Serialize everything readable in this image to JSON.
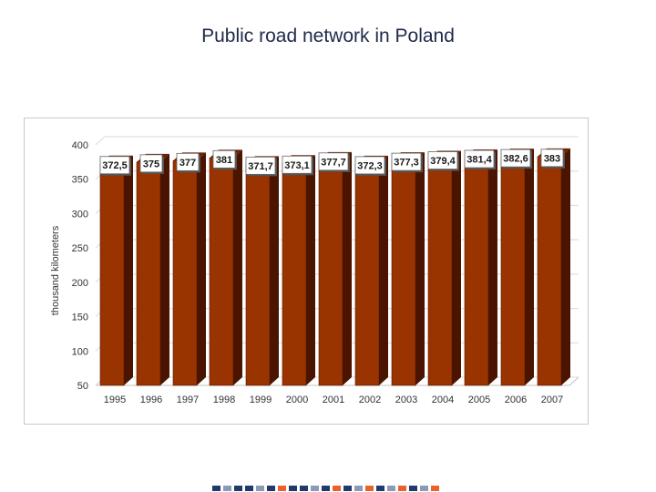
{
  "slide": {
    "title": "Public road network in Poland"
  },
  "chart_data": {
    "type": "bar",
    "title": "",
    "xlabel": "",
    "ylabel": "thousand kilometers",
    "categories": [
      "1995",
      "1996",
      "1997",
      "1998",
      "1999",
      "2000",
      "2001",
      "2002",
      "2003",
      "2004",
      "2005",
      "2006",
      "2007"
    ],
    "values": [
      372.5,
      375,
      377,
      381,
      371.7,
      373.1,
      377.7,
      372.3,
      377.3,
      379.4,
      381.4,
      382.6,
      383
    ],
    "value_labels": [
      "372,5",
      "375",
      "377",
      "381",
      "371,7",
      "373,1",
      "377,7",
      "372,3",
      "377,3",
      "379,4",
      "381,4",
      "382,6",
      "383"
    ],
    "ylim": [
      50,
      400
    ],
    "yticks": [
      50,
      100,
      150,
      200,
      250,
      300,
      350,
      400
    ],
    "grid": true,
    "legend": "none",
    "bar_color": "#993300",
    "bar_side_color": "#4a1400",
    "bar_top_color": "#6b2200",
    "grid_color": "#d9d9d9"
  },
  "footer": {
    "colors": [
      "#1f3a6b",
      "#8a9bb8",
      "#1f3a6b",
      "#1f3a6b",
      "#8a9bb8",
      "#1f3a6b",
      "#e8622a",
      "#1f3a6b",
      "#1f3a6b",
      "#8a9bb8",
      "#1f3a6b",
      "#e8622a",
      "#1f3a6b",
      "#8a9bb8",
      "#e8622a",
      "#1f3a6b",
      "#8a9bb8",
      "#e8622a",
      "#1f3a6b",
      "#8a9bb8",
      "#e8622a"
    ]
  }
}
